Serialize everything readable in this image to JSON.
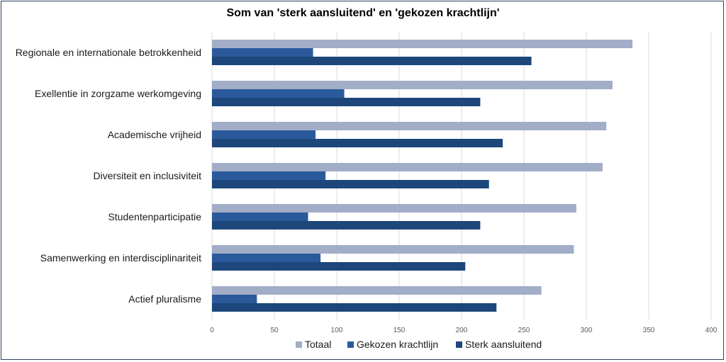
{
  "chart_data": {
    "type": "bar",
    "orientation": "horizontal",
    "title": "Som van 'sterk aansluitend' en 'gekozen krachtlijn'",
    "categories": [
      "Regionale en internationale betrokkenheid",
      "Exellentie in zorgzame werkomgeving",
      "Academische vrijheid",
      "Diversiteit en inclusiviteit",
      "Studentenparticipatie",
      "Samenwerking en interdisciplinariteit",
      "Actief pluralisme"
    ],
    "series": [
      {
        "name": "Totaal",
        "color": "#a2adc8",
        "values": [
          337,
          321,
          316,
          313,
          292,
          290,
          264
        ]
      },
      {
        "name": "Gekozen krachtlijn",
        "color": "#2b5a9c",
        "values": [
          81,
          106,
          83,
          91,
          77,
          87,
          36
        ]
      },
      {
        "name": "Sterk aansluitend",
        "color": "#1d477a",
        "values": [
          256,
          215,
          233,
          222,
          215,
          203,
          228
        ]
      }
    ],
    "xlim": [
      0,
      400
    ],
    "xticks": [
      "0",
      "50",
      "100",
      "150",
      "200",
      "250",
      "300",
      "350",
      "400"
    ],
    "xlabel": "",
    "ylabel": "",
    "grid": true,
    "legend_position": "bottom"
  }
}
